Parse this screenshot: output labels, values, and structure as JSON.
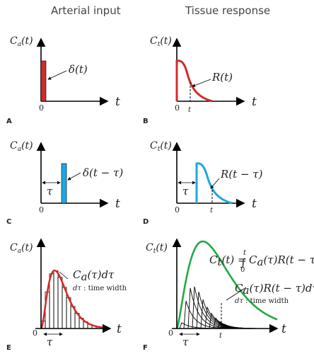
{
  "headers": {
    "left": "Arterial input",
    "right": "Tissue response"
  },
  "panels": {
    "A": {
      "label": "A",
      "ylabel": "C_a(t)",
      "xlabel": "t",
      "origin": "0",
      "annotation": "δ(t)"
    },
    "B": {
      "label": "B",
      "ylabel": "C_t(t)",
      "xlabel": "t",
      "origin": "0",
      "tick": "t",
      "annotation": "R(t)"
    },
    "C": {
      "label": "C",
      "ylabel": "C_a(t)",
      "xlabel": "t",
      "origin": "0",
      "tau": "τ",
      "annotation": "δ(t − τ)"
    },
    "D": {
      "label": "D",
      "ylabel": "C_t(t)",
      "xlabel": "t",
      "origin": "0",
      "tau": "τ",
      "tick": "t",
      "annotation": "R(t − τ)"
    },
    "E": {
      "label": "E",
      "ylabel": "C_a(t)",
      "xlabel": "t",
      "origin": "0",
      "tau": "τ",
      "annotation": "C_a(τ)dτ",
      "note_prefix": "dτ",
      "note": " : time width"
    },
    "F": {
      "label": "F",
      "ylabel": "C_t(t)",
      "xlabel": "t",
      "origin": "0",
      "tau": "τ",
      "tick": "t",
      "equation_lhs": "C_t(t) =",
      "equation_rhs": "C_a(τ)R(t − τ)dτ",
      "int_upper": "t",
      "int_lower": "0",
      "annotation": "C_a(τ)R(t − τ)dτ",
      "note_prefix": "dτ",
      "note": " : time width"
    }
  },
  "colors": {
    "red": "#d42a2a",
    "blue": "#1ea8e0",
    "green": "#22aa44",
    "axis": "#000000"
  }
}
